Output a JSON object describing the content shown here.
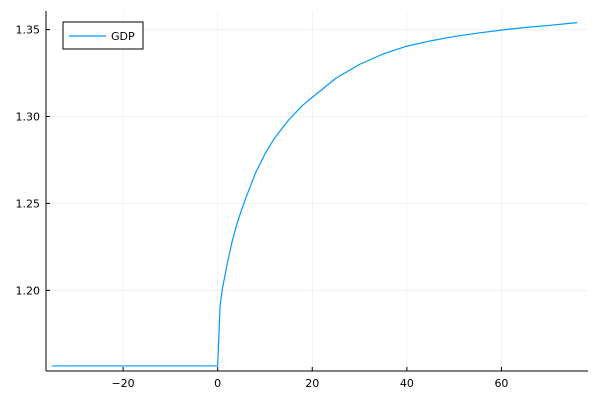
{
  "chart_data": {
    "type": "line",
    "title": "",
    "xlabel": "",
    "ylabel": "",
    "xlim": [
      -36.3,
      78.3
    ],
    "ylim": [
      1.1536,
      1.3607
    ],
    "x_ticks": [
      -20,
      0,
      20,
      40,
      60
    ],
    "x_tick_labels": [
      "−20",
      "0",
      "20",
      "40",
      "60"
    ],
    "y_ticks": [
      1.2,
      1.25,
      1.3,
      1.35
    ],
    "y_tick_labels": [
      "1.20",
      "1.25",
      "1.30",
      "1.35"
    ],
    "grid": true,
    "legend": {
      "position": "top-left",
      "frame": true
    },
    "series": [
      {
        "name": "GDP",
        "color": "#009AFA",
        "x": [
          -35,
          -30,
          -25,
          -20,
          -15,
          -10,
          -5,
          -1,
          0,
          0.5,
          1,
          2,
          3,
          4,
          5,
          6,
          8,
          10,
          12,
          15,
          18,
          20,
          25,
          30,
          35,
          40,
          45,
          50,
          55,
          60,
          65,
          70,
          76
        ],
        "y": [
          1.1565,
          1.1565,
          1.1565,
          1.1565,
          1.1565,
          1.1565,
          1.1565,
          1.1565,
          1.1565,
          1.191,
          1.201,
          1.215,
          1.2275,
          1.2375,
          1.246,
          1.2535,
          1.2675,
          1.2785,
          1.2875,
          1.298,
          1.3065,
          1.311,
          1.322,
          1.33,
          1.336,
          1.3405,
          1.3435,
          1.346,
          1.348,
          1.3497,
          1.3512,
          1.3524,
          1.354
        ]
      }
    ]
  }
}
